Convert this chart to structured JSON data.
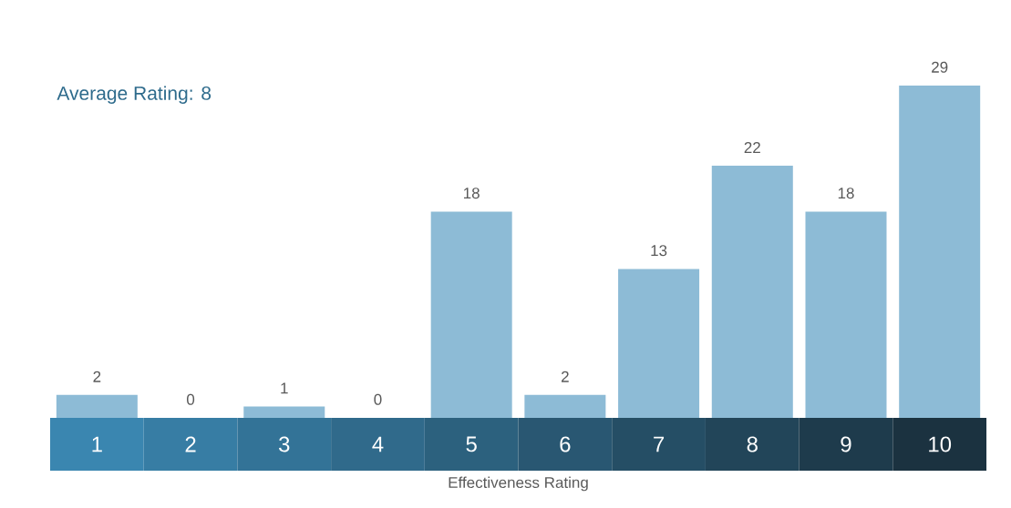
{
  "chart_data": {
    "type": "bar",
    "xlabel": "Effectiveness Rating",
    "annotations": [
      "Average Rating: 8"
    ],
    "categories": [
      "1",
      "2",
      "3",
      "4",
      "5",
      "6",
      "7",
      "8",
      "9",
      "10"
    ],
    "values": [
      2,
      0,
      1,
      0,
      18,
      2,
      13,
      22,
      18,
      29
    ],
    "color": "#8dbbd6",
    "data_labels": true
  }
}
